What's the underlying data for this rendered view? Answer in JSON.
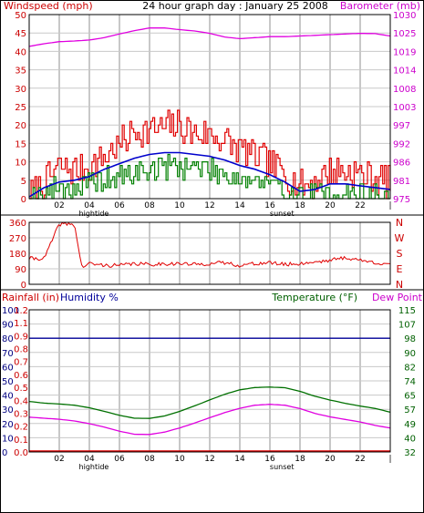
{
  "title": "24 hour graph day : January 25 2008",
  "colors": {
    "wind": "#e00000",
    "wind_avg": "#0000cc",
    "wind_low": "#008000",
    "barometer": "#e000e0",
    "direction": "#e00000",
    "humidity": "#000099",
    "temperature": "#007000",
    "dewpoint": "#e000e0",
    "rainfall": "#e00000",
    "grid": "#c8c8c8",
    "axis_left_text": "#cc0000",
    "axis_right_text": "#cc00cc",
    "axis_blue_text": "#000080",
    "axis_green_text": "#006000"
  },
  "chart_data": [
    {
      "type": "line",
      "name": "wind-barometer",
      "left_label": "Windspeed (mph)",
      "right_label": "Barometer (mb)",
      "left_ticks": [
        "0",
        "5",
        "10",
        "15",
        "20",
        "25",
        "30",
        "35",
        "40",
        "45",
        "50"
      ],
      "left_range": [
        0,
        50
      ],
      "right_ticks": [
        "975",
        "981",
        "986",
        "992",
        "997",
        "1003",
        "1008",
        "1014",
        "1019",
        "1025",
        "1030"
      ],
      "right_range": [
        975,
        1030
      ],
      "x_ticks": [
        "02",
        "04",
        "06",
        "08",
        "10",
        "12",
        "14",
        "16",
        "18",
        "20",
        "22"
      ],
      "x_range": [
        0,
        24
      ],
      "events": [
        {
          "x": 4.3,
          "label": "hightide"
        },
        {
          "x": 16.8,
          "label": "sunset"
        }
      ],
      "grid": true,
      "series": [
        {
          "key": "gust",
          "x": [
            0,
            1,
            2,
            3,
            4,
            5,
            6,
            7,
            8,
            9,
            10,
            11,
            12,
            13,
            14,
            15,
            16,
            17,
            18,
            19,
            20,
            21,
            22,
            23,
            24
          ],
          "values": [
            1,
            5,
            9,
            8,
            9,
            12,
            15,
            19,
            19,
            20,
            20,
            18,
            18,
            16,
            14,
            12,
            10,
            7,
            4,
            5,
            8,
            8,
            7,
            6,
            5
          ]
        },
        {
          "key": "average",
          "x": [
            0,
            1,
            2,
            3,
            4,
            5,
            6,
            7,
            8,
            9,
            10,
            11,
            12,
            13,
            14,
            15,
            16,
            17,
            18,
            19,
            20,
            21,
            22,
            23,
            24
          ],
          "values": [
            0.5,
            3,
            4.5,
            5,
            6,
            8,
            9.5,
            11,
            12,
            12.5,
            12.5,
            12,
            11.5,
            10.5,
            9,
            8,
            6.5,
            4.5,
            2,
            2.5,
            4,
            4,
            3.5,
            3,
            2.5
          ]
        },
        {
          "key": "low",
          "x": [
            0,
            1,
            2,
            3,
            4,
            5,
            6,
            7,
            8,
            9,
            10,
            11,
            12,
            13,
            14,
            15,
            16,
            17,
            18,
            19,
            20,
            21,
            22,
            23,
            24
          ],
          "values": [
            0,
            1.5,
            3,
            3,
            3.5,
            5,
            6,
            7,
            8,
            8.5,
            9,
            8.5,
            8,
            7,
            5.5,
            5,
            3.5,
            2,
            0.5,
            0.5,
            1.5,
            1.5,
            1,
            1,
            0.5
          ]
        },
        {
          "key": "barometer",
          "x": [
            0,
            1,
            2,
            3,
            4,
            5,
            6,
            7,
            8,
            9,
            10,
            11,
            12,
            13,
            14,
            15,
            16,
            17,
            18,
            19,
            20,
            21,
            22,
            23,
            24
          ],
          "values": [
            1020.5,
            1021.3,
            1021.9,
            1022.1,
            1022.4,
            1023.1,
            1024.2,
            1025.2,
            1026.0,
            1026.0,
            1025.5,
            1025.1,
            1024.4,
            1023.3,
            1022.8,
            1023.1,
            1023.4,
            1023.4,
            1023.6,
            1023.8,
            1024.0,
            1024.2,
            1024.4,
            1024.3,
            1023.6
          ]
        }
      ]
    },
    {
      "type": "line",
      "name": "wind-direction",
      "left_ticks": [
        "0",
        "90",
        "180",
        "270",
        "360"
      ],
      "left_range": [
        0,
        360
      ],
      "right_ticks": [
        "N",
        "W",
        "S",
        "E",
        "N"
      ],
      "x_range": [
        0,
        24
      ],
      "grid": true,
      "series": [
        {
          "key": "direction",
          "x": [
            0,
            1,
            2,
            3,
            3.5,
            4,
            5,
            6,
            7,
            8,
            9,
            10,
            11,
            12,
            13,
            14,
            15,
            16,
            17,
            18,
            19,
            20,
            21,
            22,
            23,
            24
          ],
          "values": [
            150,
            150,
            350,
            350,
            100,
            120,
            110,
            110,
            120,
            115,
            120,
            120,
            115,
            120,
            125,
            110,
            120,
            125,
            115,
            120,
            130,
            140,
            155,
            140,
            125,
            120
          ]
        }
      ]
    },
    {
      "type": "line",
      "name": "rain-humidity-temperature",
      "left_label": "Rainfall (in)",
      "left_label_2": "Humidity %",
      "right_label": "Temperature (°F)",
      "right_label_2": "Dew Point",
      "left_ticks": [
        "0",
        "10",
        "20",
        "30",
        "40",
        "50",
        "60",
        "70",
        "80",
        "90",
        "100"
      ],
      "left_ticks_2": [
        "0.0",
        "0.1",
        "0.2",
        "0.3",
        "0.4",
        "0.5",
        "0.6",
        "0.7",
        "0.8",
        "0.9",
        "1.1",
        "1.2"
      ],
      "left_range": [
        0,
        100
      ],
      "right_ticks": [
        "32",
        "40",
        "49",
        "57",
        "65",
        "74",
        "82",
        "90",
        "98",
        "107",
        "115"
      ],
      "right_range": [
        32,
        115
      ],
      "x_ticks": [
        "02",
        "04",
        "06",
        "08",
        "10",
        "12",
        "14",
        "16",
        "18",
        "20",
        "22"
      ],
      "x_range": [
        0,
        24
      ],
      "events": [
        {
          "x": 4.3,
          "label": "hightide"
        },
        {
          "x": 16.8,
          "label": "sunset"
        }
      ],
      "grid": true,
      "series": [
        {
          "key": "humidity",
          "x": [
            0,
            24
          ],
          "values": [
            80,
            80
          ]
        },
        {
          "key": "temperature",
          "x": [
            0,
            1,
            2,
            3,
            4,
            5,
            6,
            7,
            8,
            9,
            10,
            11,
            12,
            13,
            14,
            15,
            16,
            17,
            18,
            19,
            20,
            21,
            22,
            23,
            24
          ],
          "values": [
            61.5,
            60.5,
            60.0,
            59.3,
            57.8,
            55.7,
            53.4,
            51.7,
            51.6,
            53.0,
            55.7,
            58.9,
            62.4,
            65.7,
            68.3,
            69.6,
            69.9,
            69.5,
            67.4,
            64.5,
            62.3,
            60.4,
            58.8,
            57.4,
            55.2
          ]
        },
        {
          "key": "dewpoint",
          "x": [
            0,
            1,
            2,
            3,
            4,
            5,
            6,
            7,
            8,
            9,
            10,
            11,
            12,
            13,
            14,
            15,
            16,
            17,
            18,
            19,
            20,
            21,
            22,
            23,
            24
          ],
          "values": [
            52.3,
            51.7,
            51.1,
            50.1,
            48.5,
            46.5,
            44.1,
            42.3,
            42.2,
            43.6,
            46.0,
            48.9,
            52.0,
            55.0,
            57.5,
            59.3,
            59.8,
            59.3,
            57.3,
            54.5,
            52.5,
            51.0,
            49.5,
            47.5,
            46.0
          ]
        },
        {
          "key": "rainfall",
          "x": [
            0,
            24
          ],
          "values": [
            0,
            0
          ]
        }
      ]
    }
  ]
}
